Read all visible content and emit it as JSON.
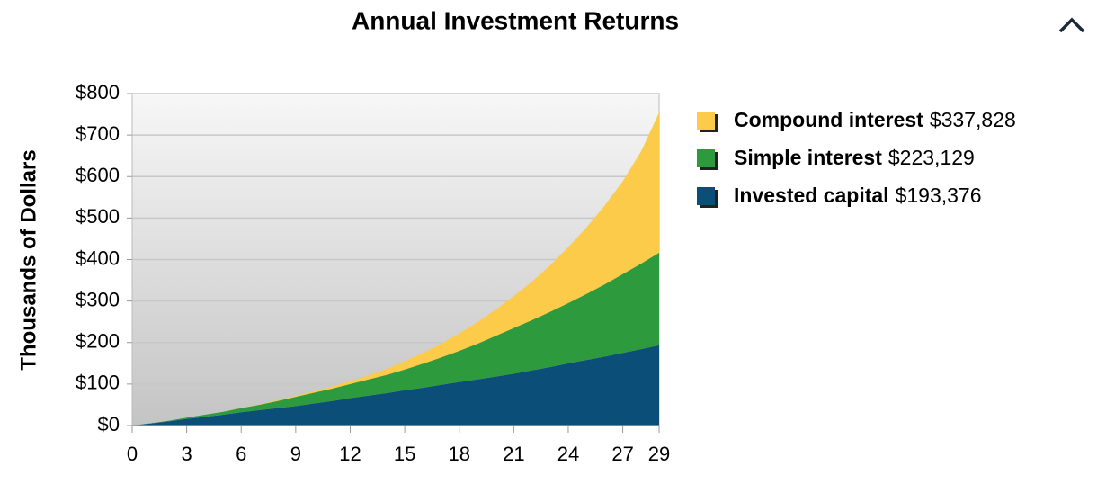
{
  "chart_data": {
    "type": "stacked_area",
    "title": "Annual Investment Returns",
    "y_label": "Thousands of Dollars",
    "x": [
      0,
      1,
      2,
      3,
      4,
      5,
      6,
      7,
      8,
      9,
      10,
      11,
      12,
      13,
      14,
      15,
      16,
      17,
      18,
      19,
      20,
      21,
      22,
      23,
      24,
      25,
      26,
      27,
      28,
      29
    ],
    "xlim": [
      0,
      29
    ],
    "xticks": [
      0,
      3,
      6,
      9,
      12,
      15,
      18,
      21,
      24,
      27,
      29
    ],
    "ylim": [
      0,
      800
    ],
    "yticks": [
      {
        "value": 0,
        "label": "$0"
      },
      {
        "value": 100,
        "label": "$100"
      },
      {
        "value": 200,
        "label": "$200"
      },
      {
        "value": 300,
        "label": "$300"
      },
      {
        "value": 400,
        "label": "$400"
      },
      {
        "value": 500,
        "label": "$500"
      },
      {
        "value": 600,
        "label": "$600"
      },
      {
        "value": 700,
        "label": "$700"
      },
      {
        "value": 800,
        "label": "$800"
      }
    ],
    "grid": true,
    "series": [
      {
        "name": "Invested capital",
        "color": "#0b4f78",
        "values": [
          0,
          5,
          10,
          16,
          21,
          26,
          32,
          37,
          42,
          47,
          53,
          59,
          66,
          72,
          78,
          85,
          91,
          98,
          105,
          111,
          118,
          125,
          133,
          141,
          150,
          158,
          166,
          175,
          184,
          193.376
        ],
        "value_labels": [
          null,
          null,
          null,
          null,
          null,
          null,
          null,
          null,
          null,
          null,
          null,
          null,
          null,
          null,
          null,
          null,
          null,
          null,
          null,
          null,
          null,
          null,
          null,
          null,
          null,
          null,
          null,
          null,
          null,
          "$193,376"
        ]
      },
      {
        "name": "Simple interest",
        "color": "#2e9a3e",
        "values": [
          0,
          0.5,
          1.5,
          3,
          5,
          7,
          10,
          13,
          17,
          22,
          26,
          30,
          34,
          39,
          44,
          50,
          58,
          66,
          75,
          86,
          98,
          110,
          121,
          133,
          145,
          159,
          174,
          190,
          206,
          223.129
        ],
        "value_labels": [
          null,
          null,
          null,
          null,
          null,
          null,
          null,
          null,
          null,
          null,
          null,
          null,
          null,
          null,
          null,
          null,
          null,
          null,
          null,
          null,
          null,
          null,
          null,
          null,
          null,
          null,
          null,
          null,
          null,
          "$223,129"
        ]
      },
      {
        "name": "Compound interest",
        "color": "#fccb4a",
        "values": [
          0,
          0,
          0,
          0,
          0.1,
          0.3,
          0.6,
          1,
          1.6,
          2.5,
          3.6,
          5,
          7,
          10,
          14,
          20,
          26,
          33,
          42,
          52,
          63,
          77,
          93,
          112,
          135,
          160,
          190,
          224,
          270,
          337.828
        ],
        "value_labels": [
          null,
          null,
          null,
          null,
          null,
          null,
          null,
          null,
          null,
          null,
          null,
          null,
          null,
          null,
          null,
          null,
          null,
          null,
          null,
          null,
          null,
          null,
          null,
          null,
          null,
          null,
          null,
          null,
          null,
          "$337,828"
        ]
      }
    ]
  }
}
